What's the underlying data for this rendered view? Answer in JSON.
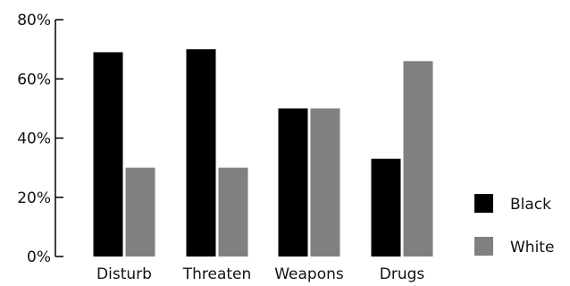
{
  "chart_data": {
    "type": "bar",
    "categories": [
      "Disturb",
      "Threaten",
      "Weapons",
      "Drugs"
    ],
    "series": [
      {
        "name": "Black",
        "values": [
          69,
          70,
          50,
          33
        ],
        "color": "#000000"
      },
      {
        "name": "White",
        "values": [
          30,
          30,
          50,
          66
        ],
        "color": "#808080"
      }
    ],
    "ylim": [
      0,
      80
    ],
    "yticks": [
      0,
      20,
      40,
      60,
      80
    ],
    "ytick_labels": [
      "0%",
      "20%",
      "40%",
      "60%",
      "80%"
    ],
    "grid": false,
    "legend_position": "right"
  }
}
